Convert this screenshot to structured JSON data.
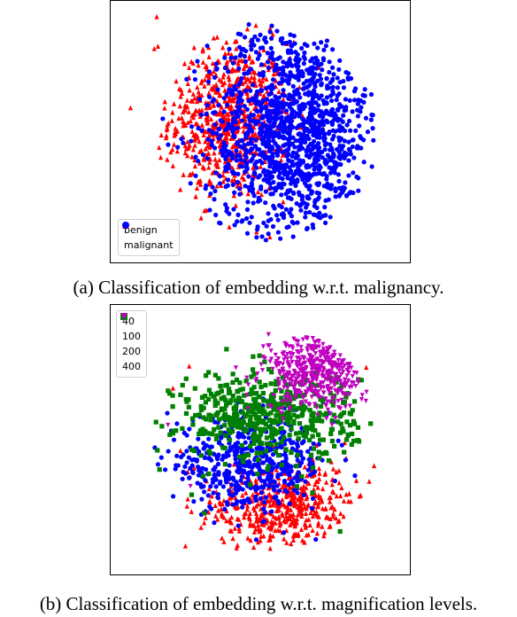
{
  "chart_data": [
    {
      "type": "scatter",
      "title": "",
      "caption": "(a) Classification of embedding w.r.t. malignancy.",
      "xlabel": "",
      "ylabel": "",
      "axes_visible": false,
      "grid": false,
      "legend_position": "bottom-left",
      "series": [
        {
          "name": "benign",
          "marker": "triangle-up",
          "color": "#ff0000",
          "points": [
            [
              2,
              6
            ],
            [
              -10,
              32
            ],
            [
              -20,
              38
            ],
            [
              -38,
              26
            ],
            [
              -63,
              71
            ],
            [
              -56,
              68
            ],
            [
              -95,
              70
            ],
            [
              -114,
              20
            ],
            [
              -92,
              72
            ],
            [
              -93,
              97
            ]
          ],
          "approx_count": 700,
          "cluster": {
            "center": [
              -35,
              10
            ],
            "spread": [
              40,
              55
            ],
            "region": "left"
          }
        },
        {
          "name": "malignant",
          "marker": "circle",
          "color": "#0000ff",
          "points": [
            [
              -25,
              45
            ],
            [
              -15,
              73
            ],
            [
              45,
              37
            ],
            [
              44,
              8
            ],
            [
              41,
              69
            ],
            [
              79,
              10
            ],
            [
              8,
              20
            ],
            [
              10,
              48
            ]
          ],
          "approx_count": 1300,
          "cluster": {
            "center": [
              15,
              0
            ],
            "spread": [
              55,
              75
            ],
            "region": "center-right"
          }
        }
      ],
      "xlim": [
        -120,
        100
      ],
      "ylim": [
        -100,
        100
      ]
    },
    {
      "type": "scatter",
      "title": "",
      "caption": "(b) Classification of embedding w.r.t. magnification levels.",
      "xlabel": "",
      "ylabel": "",
      "axes_visible": false,
      "grid": false,
      "legend_position": "top-left",
      "series": [
        {
          "name": "40",
          "marker": "triangle-up",
          "color": "#ff0000",
          "points": [
            [
              0,
              -5
            ],
            [
              -67,
              60
            ],
            [
              -80,
              42
            ],
            [
              -74,
              -9
            ],
            [
              75,
              59
            ],
            [
              -70,
              -87
            ]
          ],
          "approx_count": 500,
          "cluster": {
            "center": [
              10,
              -55
            ],
            "spread": [
              60,
              30
            ],
            "region": "bottom"
          }
        },
        {
          "name": "100",
          "marker": "circle",
          "color": "#0000ff",
          "points": [
            [
              -10,
              15
            ],
            [
              -25,
              -10
            ],
            [
              45,
              22
            ],
            [
              -48,
              -35
            ],
            [
              -2,
              11
            ]
          ],
          "approx_count": 500,
          "cluster": {
            "center": [
              -20,
              -20
            ],
            "spread": [
              55,
              30
            ],
            "region": "center-left"
          }
        },
        {
          "name": "200",
          "marker": "square",
          "color": "#008000",
          "points": [
            [
              -65,
              -45
            ],
            [
              -55,
              -60
            ],
            [
              54,
              -75
            ]
          ],
          "approx_count": 500,
          "cluster": {
            "center": [
              -5,
              20
            ],
            "spread": [
              60,
              30
            ],
            "region": "middle"
          }
        },
        {
          "name": "400",
          "marker": "triangle-down",
          "color": "#bf00bf",
          "points": [
            [
              20,
              60
            ],
            [
              -66,
              -38
            ],
            [
              -84,
              12
            ]
          ],
          "approx_count": 450,
          "cluster": {
            "center": [
              35,
              55
            ],
            "spread": [
              35,
              25
            ],
            "region": "top-right"
          }
        }
      ],
      "xlim": [
        -120,
        100
      ],
      "ylim": [
        -100,
        100
      ]
    }
  ]
}
